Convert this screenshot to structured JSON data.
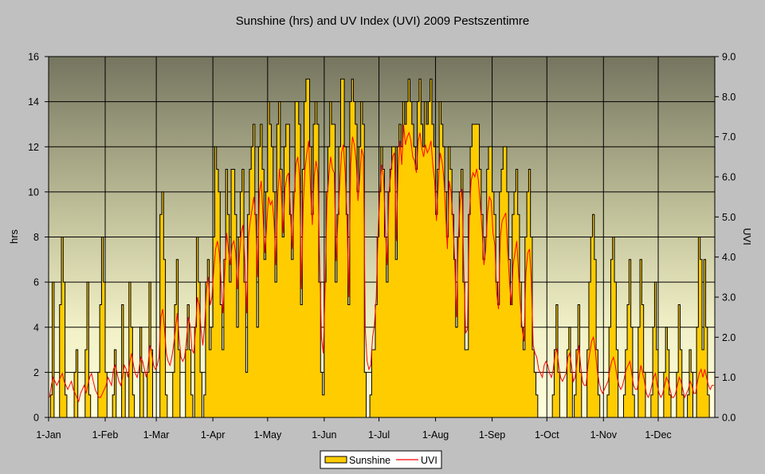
{
  "chart_data": {
    "type": "area",
    "title": "Sunshine (hrs) and UV Index (UVI) 2009 Pestszentimre",
    "xlabel": "",
    "ylabel": "hrs",
    "y2label": "UVI",
    "ylim": [
      0,
      16
    ],
    "y2lim": [
      0,
      9
    ],
    "yticks": [
      "0",
      "2",
      "4",
      "6",
      "8",
      "10",
      "12",
      "14",
      "16"
    ],
    "y2ticks": [
      "0.0",
      "1.0",
      "2.0",
      "3.0",
      "4.0",
      "5.0",
      "6.0",
      "7.0",
      "8.0",
      "9.0"
    ],
    "xticks": [
      {
        "label": "1-Jan",
        "day": 0
      },
      {
        "label": "1-Feb",
        "day": 31
      },
      {
        "label": "1-Mar",
        "day": 59
      },
      {
        "label": "1-Apr",
        "day": 90
      },
      {
        "label": "1-May",
        "day": 120
      },
      {
        "label": "1-Jun",
        "day": 151
      },
      {
        "label": "1-Jul",
        "day": 181
      },
      {
        "label": "1-Aug",
        "day": 212
      },
      {
        "label": "1-Sep",
        "day": 243
      },
      {
        "label": "1-Oct",
        "day": 273
      },
      {
        "label": "1-Nov",
        "day": 304
      },
      {
        "label": "1-Dec",
        "day": 334
      }
    ],
    "grid": true,
    "legend": "bottom",
    "series": [
      {
        "name": "Sunshine",
        "type": "area",
        "axis": "left",
        "color": "#ffcc00",
        "values": [
          0,
          1,
          6,
          0,
          0,
          0,
          5,
          8,
          6,
          1,
          0,
          0,
          0,
          0,
          2,
          3,
          0,
          0,
          0,
          0,
          3,
          6,
          1,
          0,
          0,
          0,
          0,
          2,
          5,
          8,
          6,
          2,
          0,
          0,
          0,
          1,
          3,
          0,
          0,
          0,
          5,
          2,
          0,
          0,
          6,
          4,
          1,
          0,
          0,
          0,
          4,
          2,
          0,
          0,
          2,
          6,
          3,
          0,
          0,
          0,
          0,
          9,
          10,
          7,
          1,
          0,
          0,
          0,
          2,
          5,
          7,
          3,
          0,
          0,
          0,
          3,
          5,
          3,
          1,
          0,
          4,
          8,
          6,
          2,
          0,
          1,
          6,
          7,
          3,
          4,
          8,
          12,
          11,
          10,
          5,
          3,
          7,
          11,
          9,
          6,
          11,
          11,
          9,
          4,
          8,
          10,
          11,
          6,
          2,
          9,
          11,
          12,
          13,
          9,
          4,
          12,
          13,
          11,
          7,
          10,
          14,
          13,
          12,
          10,
          6,
          13,
          14,
          11,
          8,
          12,
          13,
          13,
          9,
          7,
          10,
          14,
          14,
          13,
          5,
          11,
          14,
          15,
          15,
          12,
          9,
          13,
          14,
          13,
          6,
          2,
          1,
          6,
          10,
          12,
          14,
          13,
          13,
          6,
          9,
          12,
          15,
          15,
          12,
          9,
          5,
          14,
          15,
          14,
          13,
          10,
          12,
          14,
          13,
          2,
          0,
          0,
          1,
          3,
          3,
          5,
          8,
          10,
          12,
          11,
          8,
          6,
          10,
          11,
          12,
          12,
          7,
          12,
          13,
          12,
          14,
          13,
          14,
          15,
          14,
          13,
          12,
          11,
          14,
          15,
          13,
          12,
          14,
          13,
          14,
          15,
          13,
          12,
          9,
          11,
          14,
          13,
          12,
          10,
          8,
          12,
          11,
          9,
          7,
          4,
          8,
          10,
          11,
          6,
          3,
          3,
          9,
          12,
          13,
          13,
          13,
          13,
          11,
          9,
          7,
          8,
          11,
          12,
          12,
          10,
          9,
          6,
          5,
          10,
          11,
          12,
          12,
          10,
          7,
          5,
          9,
          10,
          11,
          9,
          6,
          4,
          3,
          8,
          10,
          11,
          8,
          3,
          2,
          1,
          0,
          0,
          0,
          0,
          0,
          0,
          0,
          0,
          1,
          3,
          5,
          2,
          0,
          0,
          0,
          0,
          3,
          4,
          2,
          0,
          1,
          3,
          5,
          2,
          0,
          0,
          0,
          3,
          6,
          8,
          9,
          7,
          3,
          1,
          0,
          0,
          0,
          0,
          1,
          4,
          7,
          8,
          6,
          3,
          0,
          0,
          0,
          1,
          3,
          5,
          7,
          4,
          1,
          0,
          0,
          4,
          7,
          5,
          2,
          0,
          0,
          0,
          1,
          4,
          6,
          3,
          0,
          0,
          0,
          2,
          4,
          3,
          1,
          0,
          0,
          0,
          2,
          5,
          3,
          1,
          0,
          0,
          1,
          3,
          2,
          0,
          0,
          4,
          8,
          7,
          3,
          7,
          4,
          1,
          0,
          0,
          0
        ]
      },
      {
        "name": "UVI",
        "type": "line",
        "axis": "right",
        "color": "#ff0000",
        "values": [
          0.5,
          0.8,
          1.0,
          0.9,
          0.8,
          0.9,
          1.0,
          1.1,
          0.9,
          0.8,
          0.7,
          0.8,
          0.9,
          0.7,
          0.6,
          0.5,
          0.4,
          0.6,
          0.7,
          0.8,
          0.6,
          0.8,
          1.0,
          1.1,
          0.9,
          0.7,
          0.6,
          0.5,
          0.5,
          0.6,
          0.7,
          0.8,
          1.0,
          0.9,
          0.8,
          1.2,
          1.3,
          1.1,
          0.9,
          0.8,
          1.0,
          1.3,
          1.2,
          1.0,
          1.4,
          1.6,
          1.3,
          1.1,
          1.0,
          1.2,
          1.5,
          1.4,
          1.2,
          1.0,
          1.3,
          1.8,
          1.6,
          1.3,
          1.2,
          1.3,
          1.5,
          2.5,
          2.7,
          2.2,
          1.6,
          1.4,
          1.3,
          1.5,
          1.8,
          2.2,
          2.6,
          2.0,
          1.5,
          1.4,
          1.5,
          1.9,
          2.5,
          2.3,
          1.7,
          1.6,
          2.2,
          3.0,
          2.8,
          2.2,
          1.8,
          2.3,
          3.2,
          3.5,
          2.8,
          3.0,
          3.7,
          4.2,
          4.4,
          4.1,
          3.4,
          2.6,
          3.6,
          4.6,
          4.2,
          3.8,
          4.3,
          4.4,
          4.1,
          3.2,
          4.0,
          4.6,
          4.8,
          3.9,
          2.6,
          4.5,
          4.9,
          5.2,
          5.5,
          4.9,
          3.5,
          5.6,
          5.9,
          5.0,
          4.1,
          4.8,
          5.5,
          5.3,
          5.4,
          4.9,
          3.8,
          5.5,
          6.2,
          5.6,
          4.6,
          5.7,
          6.0,
          6.1,
          5.1,
          4.2,
          5.4,
          6.3,
          6.5,
          6.0,
          3.2,
          5.3,
          6.2,
          6.6,
          6.9,
          5.7,
          4.8,
          6.0,
          6.4,
          6.1,
          3.9,
          2.0,
          1.6,
          3.2,
          5.4,
          6.0,
          6.5,
          6.2,
          6.1,
          3.9,
          4.9,
          5.8,
          6.6,
          6.8,
          6.1,
          4.9,
          3.0,
          6.3,
          7.0,
          6.8,
          6.4,
          5.4,
          6.0,
          6.7,
          6.5,
          2.2,
          1.4,
          1.2,
          1.3,
          2.0,
          2.3,
          3.0,
          4.6,
          5.6,
          6.3,
          6.0,
          4.7,
          3.8,
          5.6,
          6.1,
          6.5,
          6.6,
          4.4,
          6.2,
          6.9,
          6.3,
          7.3,
          6.8,
          7.0,
          7.1,
          6.9,
          6.5,
          6.4,
          6.1,
          6.9,
          7.1,
          6.7,
          6.5,
          6.8,
          6.6,
          6.7,
          6.9,
          6.3,
          5.9,
          4.9,
          5.8,
          6.6,
          6.4,
          6.0,
          5.1,
          4.2,
          5.9,
          5.6,
          4.9,
          3.9,
          2.5,
          4.5,
          5.4,
          5.7,
          3.7,
          2.1,
          2.2,
          5.0,
          5.9,
          6.1,
          6.0,
          6.2,
          5.9,
          5.3,
          4.7,
          3.8,
          4.2,
          5.1,
          5.5,
          5.4,
          4.6,
          4.3,
          3.1,
          2.7,
          4.5,
          4.9,
          5.0,
          5.1,
          4.2,
          3.4,
          2.8,
          3.8,
          4.1,
          4.4,
          3.6,
          2.8,
          2.2,
          1.9,
          3.6,
          4.1,
          4.2,
          3.4,
          1.8,
          1.6,
          1.5,
          1.2,
          1.1,
          1.0,
          1.3,
          1.4,
          1.3,
          1.1,
          1.0,
          1.2,
          1.6,
          1.7,
          1.3,
          1.0,
          0.9,
          1.0,
          1.1,
          1.5,
          1.6,
          1.3,
          0.9,
          1.0,
          1.4,
          1.8,
          1.3,
          0.9,
          0.8,
          0.8,
          1.3,
          1.6,
          1.9,
          2.0,
          1.7,
          1.2,
          0.9,
          0.7,
          0.6,
          0.7,
          0.8,
          0.9,
          1.2,
          1.4,
          1.5,
          1.3,
          1.0,
          0.8,
          0.7,
          0.8,
          1.0,
          1.2,
          1.3,
          1.4,
          1.1,
          0.8,
          0.7,
          0.7,
          1.0,
          1.3,
          1.1,
          0.9,
          0.6,
          0.5,
          0.6,
          0.8,
          1.0,
          1.1,
          0.8,
          0.6,
          0.5,
          0.6,
          0.8,
          1.0,
          0.9,
          0.7,
          0.5,
          0.5,
          0.6,
          0.8,
          1.0,
          0.9,
          0.7,
          0.5,
          0.6,
          0.7,
          0.9,
          0.8,
          0.6,
          0.6,
          0.9,
          1.1,
          1.2,
          1.0,
          1.2,
          1.0,
          0.8,
          0.7,
          0.8,
          0.8
        ]
      }
    ]
  },
  "colors": {
    "page_background": "#c0c0c0",
    "plot_gradient_top": "#757560",
    "plot_gradient_bottom": "#ffffd8",
    "sunshine_fill": "#ffcc00",
    "sunshine_stroke": "#000000",
    "uvi_line": "#ff0000",
    "gridline": "#000000"
  }
}
